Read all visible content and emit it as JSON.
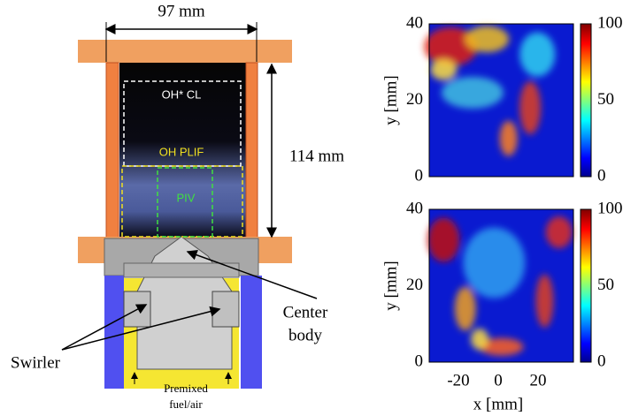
{
  "schematic": {
    "width_label": "97 mm",
    "height_label": "114 mm",
    "regions": [
      "OH* CL",
      "OH PLIF",
      "PIV"
    ],
    "center_body": [
      "Center",
      "body"
    ],
    "swirler": "Swirler",
    "inlet": [
      "Premixed",
      "fuel/air"
    ]
  },
  "panels": [
    {
      "y_label": "y [mm]",
      "y_ticks": [
        40,
        20,
        0
      ],
      "colorbar_ticks": [
        100,
        50,
        0
      ]
    },
    {
      "y_label": "y [mm]",
      "y_ticks": [
        40,
        20,
        0
      ],
      "colorbar_ticks": [
        100,
        50,
        0
      ],
      "x_label": "x [mm]",
      "x_ticks": [
        -20,
        0,
        20
      ]
    }
  ]
}
